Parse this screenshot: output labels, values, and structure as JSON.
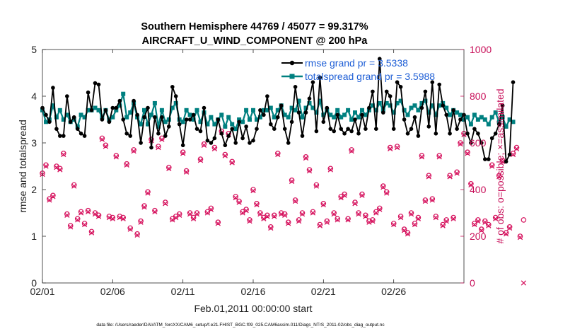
{
  "chart_data": {
    "type": "line",
    "title_line1": "Southern Hemisphere 44769 / 45077 = 99.317%",
    "title_line2": "AIRCRAFT_U_WIND_COMPONENT @ 200 hPa",
    "xlabel": "Feb.01,2011 00:00:00 start",
    "ylabel_left": "rmse and totalspread",
    "ylabel_right": "# of obs: o=possible; ×=assimilated",
    "footer": "data file: /Users/raeder/DAI/ATM_forcXX/CAM6_setup/f.e21.FHIST_BGC.f09_025.CAM6assim.011/Diags_NTrS_2011-02/obs_diag_output.nc",
    "xlim": [
      0,
      30
    ],
    "ylim_left": [
      0,
      5
    ],
    "ylim_right": [
      0,
      1000
    ],
    "x_tick_values": [
      0,
      5,
      10,
      15,
      20,
      25
    ],
    "x_tick_labels": [
      "02/01",
      "02/06",
      "02/11",
      "02/16",
      "02/21",
      "02/26"
    ],
    "y_left_ticks": [
      "0",
      "1",
      "2",
      "3",
      "4",
      "5"
    ],
    "y_right_ticks": [
      "0",
      "200",
      "400",
      "600",
      "800",
      "1000"
    ],
    "legend": {
      "location": "top-right",
      "entries": [
        "rmse grand pr = 3.5338",
        "totalspread grand pr = 3.5988"
      ]
    },
    "colors": {
      "rmse": "#000000",
      "totalspread": "#008080",
      "obs": "#d6145f",
      "right_axis": "#c8105a",
      "legend_text": "#1f5fd6"
    },
    "x_step_days": 0.25,
    "series": [
      {
        "name": "rmse",
        "axis": "left",
        "values": [
          3.75,
          3.6,
          3.45,
          4.18,
          3.3,
          3.15,
          3.15,
          4.0,
          3.45,
          3.55,
          3.3,
          3.2,
          3.15,
          4.08,
          3.7,
          4.28,
          4.25,
          3.5,
          3.7,
          3.45,
          3.75,
          3.75,
          3.9,
          3.5,
          3.2,
          3.15,
          3.9,
          3.6,
          3.0,
          3.55,
          3.75,
          2.9,
          3.55,
          3.2,
          3.55,
          3.15,
          3.35,
          4.2,
          4.0,
          3.4,
          2.95,
          3.5,
          3.5,
          3.6,
          3.3,
          3.25,
          3.75,
          3.05,
          3.0,
          3.1,
          3.5,
          3.2,
          2.95,
          3.15,
          3.3,
          3.0,
          3.45,
          3.1,
          3.35,
          3.0,
          3.05,
          3.3,
          3.7,
          3.6,
          4.0,
          3.4,
          3.3,
          3.55,
          3.8,
          3.3,
          3.0,
          3.45,
          4.2,
          3.65,
          3.15,
          3.65,
          3.95,
          4.3,
          3.25,
          4.4,
          3.45,
          3.75,
          3.3,
          3.25,
          3.6,
          3.3,
          3.2,
          3.3,
          3.25,
          3.5,
          3.2,
          3.6,
          3.3,
          3.75,
          4.1,
          3.3,
          4.8,
          3.65,
          4.1,
          4.0,
          3.3,
          4.3,
          4.2,
          3.5,
          3.2,
          3.3,
          3.55,
          3.15,
          3.75,
          4.1,
          3.35,
          4.3,
          3.2,
          4.25,
          3.8,
          3.6,
          3.2,
          3.7,
          3.3,
          3.5,
          3.6,
          3.2,
          3.0,
          3.3,
          3.2,
          3.0,
          2.65,
          2.65,
          3.1,
          3.2,
          3.4,
          3.8,
          2.6,
          2.75,
          4.3
        ]
      },
      {
        "name": "totalspread",
        "axis": "left",
        "values": [
          3.7,
          3.45,
          3.5,
          3.8,
          3.55,
          3.7,
          3.5,
          3.6,
          3.45,
          3.5,
          3.35,
          3.6,
          3.55,
          3.7,
          3.7,
          3.75,
          3.7,
          3.55,
          3.7,
          3.5,
          3.55,
          3.7,
          3.8,
          4.05,
          3.55,
          3.65,
          3.85,
          3.55,
          3.4,
          3.7,
          3.4,
          3.6,
          3.85,
          3.35,
          3.7,
          3.45,
          3.5,
          3.75,
          3.85,
          3.5,
          3.45,
          3.7,
          3.6,
          3.5,
          3.7,
          3.45,
          3.65,
          3.4,
          3.55,
          3.4,
          3.5,
          3.6,
          3.35,
          3.55,
          3.4,
          3.3,
          3.5,
          3.45,
          3.7,
          3.5,
          3.7,
          3.5,
          3.55,
          3.7,
          3.7,
          3.75,
          3.55,
          3.7,
          3.8,
          3.6,
          3.55,
          3.75,
          3.7,
          3.9,
          3.55,
          3.75,
          3.85,
          3.75,
          3.65,
          3.9,
          3.6,
          3.7,
          3.6,
          3.55,
          3.7,
          3.55,
          3.6,
          3.7,
          3.5,
          3.65,
          3.55,
          3.7,
          3.6,
          3.7,
          3.8,
          3.7,
          3.85,
          3.7,
          3.85,
          3.8,
          3.65,
          3.85,
          3.9,
          3.7,
          3.6,
          3.75,
          3.8,
          3.7,
          3.85,
          3.9,
          3.65,
          3.8,
          3.6,
          3.8,
          3.85,
          3.75,
          3.6,
          3.7,
          3.65,
          3.6,
          3.5,
          3.55,
          3.4,
          3.6,
          3.5,
          3.55,
          3.5,
          3.4,
          3.55,
          3.65,
          3.45,
          3.55,
          3.35,
          3.5,
          3.45
        ]
      },
      {
        "name": "obs_possible",
        "axis": "right",
        "marker": "o",
        "values": [
          470,
          505,
          360,
          375,
          500,
          490,
          555,
          295,
          245,
          420,
          275,
          305,
          255,
          310,
          220,
          300,
          290,
          620,
          590,
          285,
          280,
          545,
          285,
          280,
          510,
          235,
          570,
          210,
          265,
          330,
          390,
          615,
          310,
          585,
          620,
          345,
          495,
          275,
          285,
          295,
          560,
          480,
          300,
          280,
          300,
          530,
          595,
          305,
          320,
          580,
          260,
          650,
          550,
          640,
          520,
          370,
          350,
          305,
          315,
          270,
          400,
          340,
          300,
          280,
          290,
          240,
          290,
          555,
          300,
          295,
          260,
          440,
          355,
          270,
          300,
          540,
          485,
          305,
          420,
          250,
          340,
          265,
          490,
          300,
          275,
          370,
          380,
          275,
          570,
          345,
          300,
          380,
          290,
          265,
          270,
          305,
          320,
          415,
          390,
          580,
          255,
          585,
          285,
          230,
          215,
          300,
          255,
          280,
          545,
          355,
          460,
          360,
          285,
          545,
          250,
          270,
          460,
          280,
          475,
          600,
          640,
          560,
          425,
          255,
          270,
          230,
          265,
          250,
          505,
          280,
          460,
          525,
          215,
          240,
          555,
          580,
          200,
          270
        ]
      },
      {
        "name": "obs_assimilated",
        "axis": "right",
        "marker": "x",
        "values": [
          465,
          500,
          355,
          370,
          495,
          485,
          550,
          290,
          240,
          415,
          270,
          300,
          250,
          305,
          215,
          295,
          285,
          615,
          585,
          280,
          275,
          540,
          280,
          275,
          505,
          230,
          565,
          205,
          260,
          325,
          385,
          610,
          305,
          580,
          615,
          340,
          490,
          270,
          280,
          290,
          555,
          475,
          295,
          275,
          295,
          525,
          590,
          300,
          315,
          575,
          255,
          645,
          545,
          635,
          515,
          365,
          345,
          300,
          310,
          265,
          395,
          335,
          295,
          275,
          285,
          235,
          285,
          550,
          295,
          290,
          255,
          435,
          350,
          265,
          295,
          535,
          480,
          300,
          415,
          245,
          335,
          260,
          485,
          295,
          270,
          365,
          375,
          270,
          565,
          340,
          295,
          375,
          285,
          260,
          265,
          300,
          315,
          410,
          385,
          575,
          250,
          580,
          280,
          225,
          210,
          295,
          250,
          275,
          540,
          350,
          455,
          355,
          280,
          540,
          245,
          265,
          455,
          275,
          470,
          595,
          635,
          555,
          420,
          250,
          265,
          225,
          260,
          245,
          500,
          275,
          455,
          520,
          210,
          235,
          550,
          575,
          195,
          0
        ]
      }
    ]
  }
}
